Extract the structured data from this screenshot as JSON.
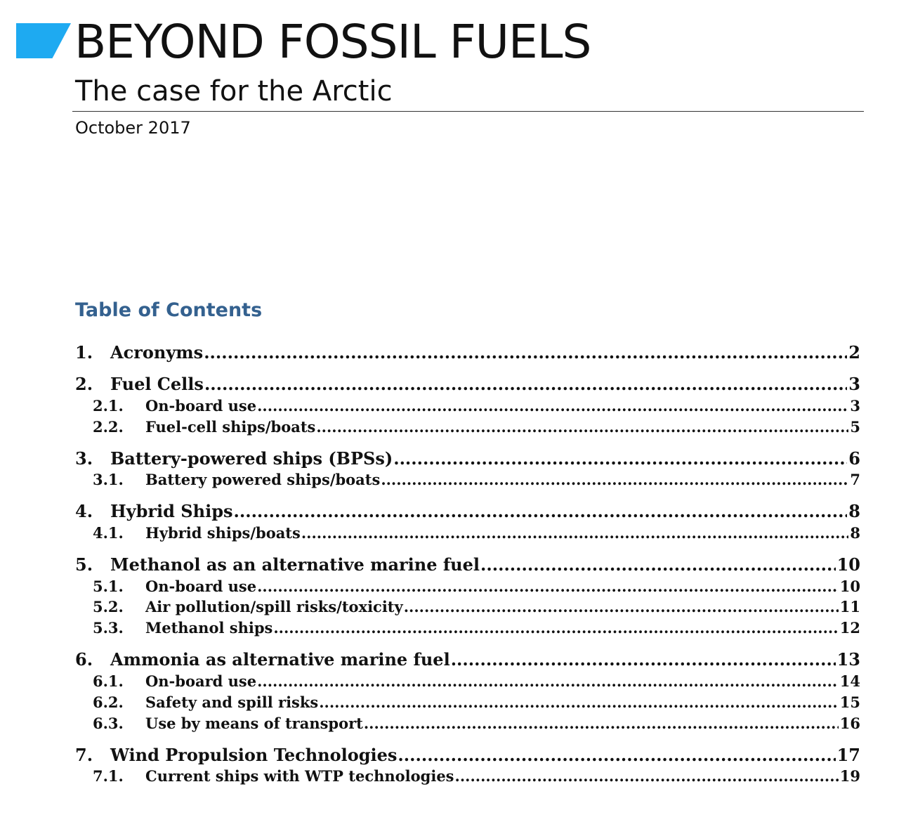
{
  "document": {
    "title": "BEYOND FOSSIL FUELS",
    "subtitle": "The case for the Arctic",
    "date": "October 2017",
    "brand_color": "#1eaaf1",
    "heading_color": "#34618f"
  },
  "toc": {
    "heading": "Table of Contents",
    "entries": [
      {
        "number": "1.",
        "title": "Acronyms",
        "page": "2",
        "level": 1
      },
      {
        "number": "2.",
        "title": "Fuel Cells",
        "page": "3",
        "level": 1
      },
      {
        "number": "2.1.",
        "title": "On-board use",
        "page": "3",
        "level": 2
      },
      {
        "number": "2.2.",
        "title": "Fuel-cell ships/boats",
        "page": "5",
        "level": 2
      },
      {
        "number": "3.",
        "title": "Battery-powered ships (BPSs)",
        "page": "6",
        "level": 1
      },
      {
        "number": "3.1.",
        "title": "Battery powered ships/boats",
        "page": "7",
        "level": 2
      },
      {
        "number": "4.",
        "title": "Hybrid Ships",
        "page": "8",
        "level": 1
      },
      {
        "number": "4.1.",
        "title": "Hybrid ships/boats",
        "page": "8",
        "level": 2
      },
      {
        "number": "5.",
        "title": "Methanol as an alternative marine fuel",
        "page": "10",
        "level": 1
      },
      {
        "number": "5.1.",
        "title": "On-board use",
        "page": "10",
        "level": 2
      },
      {
        "number": "5.2.",
        "title": "Air pollution/spill risks/toxicity",
        "page": "11",
        "level": 2
      },
      {
        "number": "5.3.",
        "title": "Methanol ships",
        "page": "12",
        "level": 2
      },
      {
        "number": "6.",
        "title": "Ammonia as alternative marine fuel",
        "page": "13",
        "level": 1
      },
      {
        "number": "6.1.",
        "title": "On-board use",
        "page": "14",
        "level": 2
      },
      {
        "number": "6.2.",
        "title": "Safety and spill risks",
        "page": "15",
        "level": 2
      },
      {
        "number": "6.3.",
        "title": "Use by means of transport",
        "page": "16",
        "level": 2
      },
      {
        "number": "7.",
        "title": "Wind Propulsion Technologies",
        "page": "17",
        "level": 1
      },
      {
        "number": "7.1.",
        "title": "Current ships with WTP technologies",
        "page": "19",
        "level": 2
      }
    ]
  }
}
